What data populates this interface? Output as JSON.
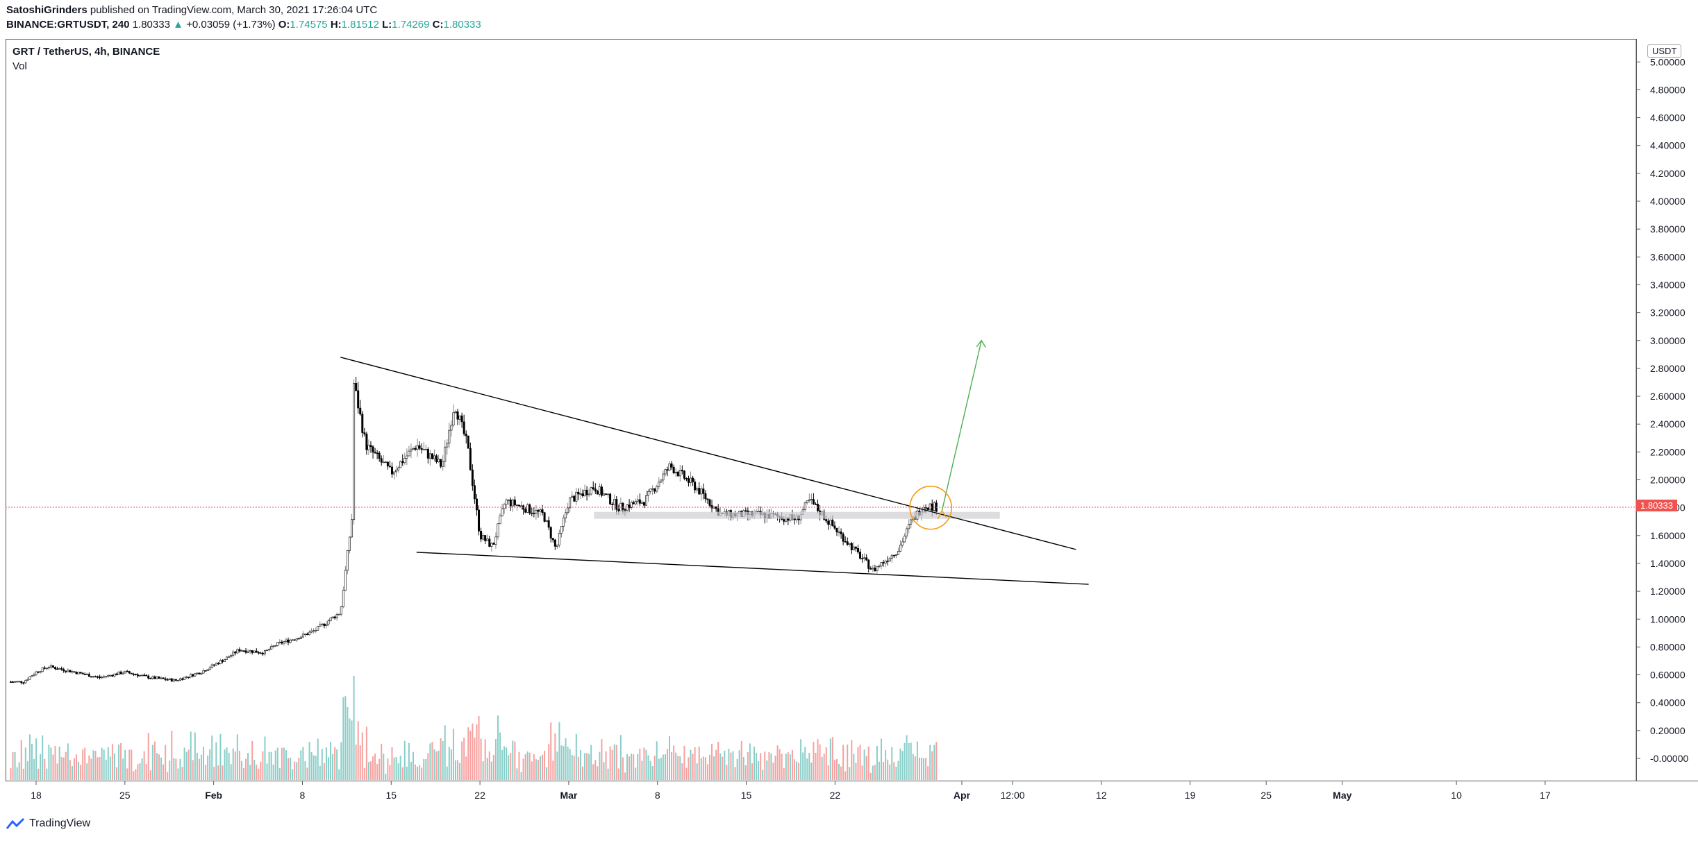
{
  "header": {
    "author": "SatoshiGrinders",
    "published_text": "published on TradingView.com, March 30, 2021 17:26:04 UTC",
    "symbol": "BINANCE:GRTUSDT, 240",
    "last": "1.80333",
    "change": "+0.03059 (+1.73%)",
    "o_label": "O:",
    "o": "1.74575",
    "h_label": "H:",
    "h": "1.81512",
    "l_label": "L:",
    "l": "1.74269",
    "c_label": "C:",
    "c": "1.80333"
  },
  "pane": {
    "title": "GRT / TetherUS, 4h, BINANCE",
    "vol_label": "Vol"
  },
  "currency": "USDT",
  "price_tag": "1.80333",
  "footer": {
    "brand": "TradingView"
  },
  "colors": {
    "up_volume": "#26a69a",
    "down_volume": "#ef5350",
    "candle": "#000000",
    "target_arrow": "#4caf50",
    "highlight_circle": "#f39c12",
    "price_line": "#ef5350"
  },
  "chart_data": {
    "type": "candlestick",
    "title": "GRT / TetherUS, 4h, BINANCE",
    "ylim": [
      -0.1,
      5.1
    ],
    "y_ticks": [
      "5.00000",
      "4.80000",
      "4.60000",
      "4.40000",
      "4.20000",
      "4.00000",
      "3.80000",
      "3.60000",
      "3.40000",
      "3.20000",
      "3.00000",
      "2.80000",
      "2.60000",
      "2.40000",
      "2.20000",
      "2.00000",
      "1.80000",
      "1.60000",
      "1.40000",
      "1.20000",
      "1.00000",
      "0.80000",
      "0.60000",
      "0.40000",
      "0.20000",
      "-0.00000"
    ],
    "x_ticks": [
      "18",
      "25",
      "Feb",
      "8",
      "15",
      "22",
      "Mar",
      "8",
      "15",
      "22",
      "Apr",
      "12:00",
      "12",
      "19",
      "25",
      "May",
      "10",
      "17"
    ],
    "price_path": [
      [
        "2021-01-17",
        0.55
      ],
      [
        "2021-01-18",
        0.62
      ],
      [
        "2021-01-19",
        0.66
      ],
      [
        "2021-01-21",
        0.62
      ],
      [
        "2021-01-23",
        0.58
      ],
      [
        "2021-01-25",
        0.62
      ],
      [
        "2021-01-27",
        0.58
      ],
      [
        "2021-01-29",
        0.56
      ],
      [
        "2021-01-31",
        0.62
      ],
      [
        "2021-02-02",
        0.72
      ],
      [
        "2021-02-03",
        0.78
      ],
      [
        "2021-02-05",
        0.76
      ],
      [
        "2021-02-06",
        0.82
      ],
      [
        "2021-02-08",
        0.88
      ],
      [
        "2021-02-09",
        0.92
      ],
      [
        "2021-02-11",
        1.05
      ],
      [
        "2021-02-12",
        1.8
      ],
      [
        "2021-02-12",
        2.72
      ],
      [
        "2021-02-13",
        2.25
      ],
      [
        "2021-02-15",
        2.05
      ],
      [
        "2021-02-17",
        2.25
      ],
      [
        "2021-02-19",
        2.1
      ],
      [
        "2021-02-20",
        2.55
      ],
      [
        "2021-02-21",
        2.25
      ],
      [
        "2021-02-22",
        1.6
      ],
      [
        "2021-02-23",
        1.52
      ],
      [
        "2021-02-24",
        1.85
      ],
      [
        "2021-02-27",
        1.75
      ],
      [
        "2021-02-28",
        1.5
      ],
      [
        "2021-03-01",
        1.85
      ],
      [
        "2021-03-03",
        1.95
      ],
      [
        "2021-03-05",
        1.8
      ],
      [
        "2021-03-07",
        1.85
      ],
      [
        "2021-03-09",
        2.1
      ],
      [
        "2021-03-11",
        1.95
      ],
      [
        "2021-03-13",
        1.75
      ],
      [
        "2021-03-16",
        1.75
      ],
      [
        "2021-03-19",
        1.72
      ],
      [
        "2021-03-20",
        1.85
      ],
      [
        "2021-03-22",
        1.65
      ],
      [
        "2021-03-24",
        1.45
      ],
      [
        "2021-03-25",
        1.35
      ],
      [
        "2021-03-27",
        1.5
      ],
      [
        "2021-03-28",
        1.7
      ],
      [
        "2021-03-29",
        1.82
      ],
      [
        "2021-03-30",
        1.80333
      ]
    ],
    "trendlines": [
      {
        "name": "falling resistance",
        "from": [
          "2021-02-11",
          2.88
        ],
        "to": [
          "2021-04-10",
          1.5
        ]
      },
      {
        "name": "falling support",
        "from": [
          "2021-02-17",
          1.48
        ],
        "to": [
          "2021-04-11",
          1.25
        ]
      }
    ],
    "support_zone": {
      "from": "2021-03-03",
      "to": "2021-04-04",
      "low": 1.72,
      "high": 1.77
    },
    "target_arrow": {
      "from": [
        "2021-03-30",
        1.78
      ],
      "to": [
        "2021-04-02",
        3.0
      ]
    },
    "current_price": 1.80333
  }
}
